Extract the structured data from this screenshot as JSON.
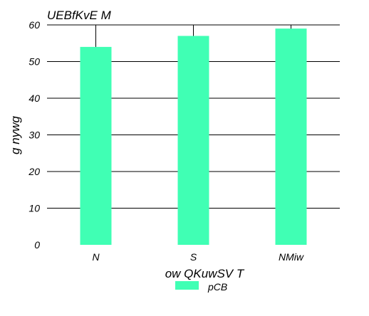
{
  "chart_data": {
    "type": "bar",
    "title": "UEBfKvE M",
    "xlabel": "ow  QKuwSV T",
    "ylabel": "g nywg",
    "categories": [
      "N",
      "S",
      "NMiw"
    ],
    "series": [
      {
        "name": "pCB",
        "values": [
          54,
          57,
          59
        ],
        "color": "#40ffb4"
      }
    ],
    "ylim": [
      0,
      60
    ],
    "yticks": [
      0,
      10,
      20,
      30,
      40,
      50,
      60
    ],
    "grid": true,
    "legend": "bottom-center"
  }
}
